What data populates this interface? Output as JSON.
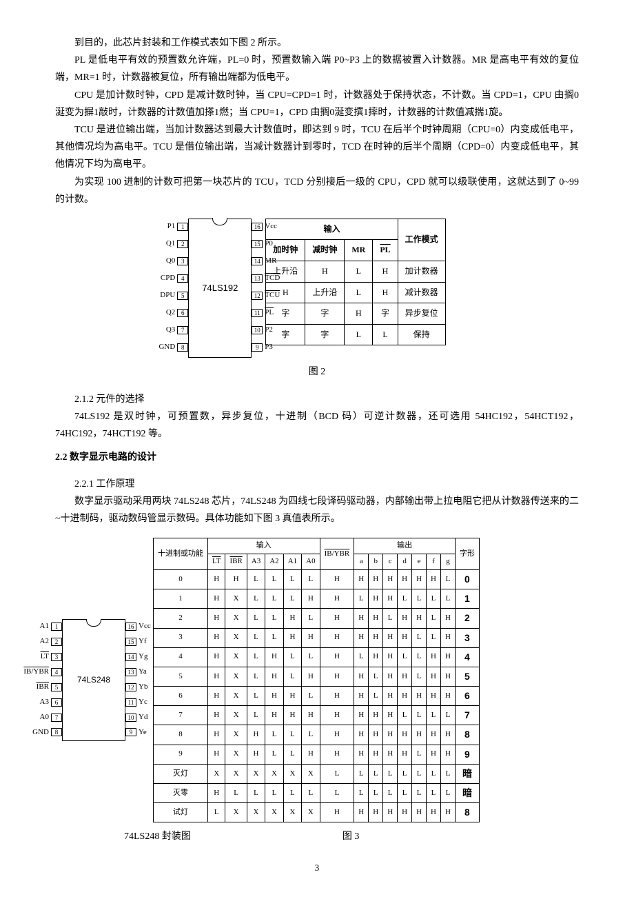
{
  "paras": [
    "到目的，此芯片封装和工作模式表如下图 2 所示。",
    "PL 是低电平有效的预置数允许端，PL=0 时，预置数输入端 P0~P3 上的数据被置入计数器。MR 是高电平有效的复位端，MR=1 时，计数器被复位，所有输出端都为低电平。",
    "CPU 是加计数时钟，CPD 是减计数时钟，当 CPU=CPD=1 时，计数器处于保持状态，不计数。当 CPD=1，CPU 由搁0涎变为摒1敲时，计数器的计数值加搽1燃；当 CPU=1，CPD 由搁0涎变撰1摔时，计数器的计数值减揣1旋。",
    "TCU 是进位输出端，当加计数器达到最大计数值时，即达到 9 时，TCU 在后半个时钟周期（CPU=0）内变成低电平，其他情况均为高电平。TCU 是借位输出端，当减计数器计到零时，TCD 在时钟的后半个周期（CPD=0）内变成低电平，其他情况下均为高电平。",
    "为实现 100 进制的计数可把第一块芯片的 TCU，TCD 分别接后一级的 CPU，CPD 就可以级联使用，这就达到了 0~99 的计数。"
  ],
  "chip1": {
    "name": "74LS192",
    "left": [
      {
        "lbl": "P1",
        "num": "1"
      },
      {
        "lbl": "Q1",
        "num": "2"
      },
      {
        "lbl": "Q0",
        "num": "3"
      },
      {
        "lbl": "CPD",
        "num": "4"
      },
      {
        "lbl": "DPU",
        "num": "5"
      },
      {
        "lbl": "Q2",
        "num": "6"
      },
      {
        "lbl": "Q3",
        "num": "7"
      },
      {
        "lbl": "GND",
        "num": "8"
      }
    ],
    "right": [
      {
        "num": "16",
        "lbl": "Vcc"
      },
      {
        "num": "15",
        "lbl": "P0"
      },
      {
        "num": "14",
        "lbl": "MR"
      },
      {
        "num": "13",
        "lbl": "TCD",
        "ovl": true
      },
      {
        "num": "12",
        "lbl": "TCU",
        "ovl": true
      },
      {
        "num": "11",
        "lbl": "PL",
        "ovl": true
      },
      {
        "num": "10",
        "lbl": "P2"
      },
      {
        "num": "9",
        "lbl": "P3"
      }
    ]
  },
  "modetable": {
    "hdr_input": "输入",
    "hdr_mode": "工作模式",
    "cols": [
      "加时钟",
      "减时钟",
      "MR",
      "PL"
    ],
    "pl_ovl": true,
    "rows": [
      [
        "上升沿",
        "H",
        "L",
        "H",
        "加计数器"
      ],
      [
        "H",
        "上升沿",
        "L",
        "H",
        "减计数器"
      ],
      [
        "字",
        "字",
        "H",
        "字",
        "异步复位"
      ],
      [
        "字",
        "字",
        "L",
        "L",
        "保持"
      ]
    ]
  },
  "fig2_caption": "图 2",
  "sec212": "2.1.2 元件的选择",
  "para212": "74LS192 是双时钟，可预置数，异步复位，十进制（BCD 码）可逆计数器，还可选用 54HC192，54HCT192，74HC192，74HCT192 等。",
  "sec22": "2.2 数字显示电路的设计",
  "sec221": "2.2.1 工作原理",
  "para221": "数字显示驱动采用两块 74LS248 芯片，74LS248 为四线七段译码驱动器，内部输出带上拉电阻它把从计数器传送来的二~十进制码，驱动数码管显示数码。具体功能如下图 3 真值表所示。",
  "chip2": {
    "name": "74LS248",
    "left": [
      {
        "lbl": "A1",
        "num": "1"
      },
      {
        "lbl": "A2",
        "num": "2"
      },
      {
        "lbl": "LT",
        "num": "3",
        "ovl": true
      },
      {
        "lbl": "IB/YBR",
        "num": "4",
        "ovl": true
      },
      {
        "lbl": "IBR",
        "num": "5",
        "ovl": true
      },
      {
        "lbl": "A3",
        "num": "6"
      },
      {
        "lbl": "A0",
        "num": "7"
      },
      {
        "lbl": "GND",
        "num": "8"
      }
    ],
    "right": [
      {
        "num": "16",
        "lbl": "Vcc"
      },
      {
        "num": "15",
        "lbl": "Yf"
      },
      {
        "num": "14",
        "lbl": "Yg"
      },
      {
        "num": "13",
        "lbl": "Ya"
      },
      {
        "num": "12",
        "lbl": "Yb"
      },
      {
        "num": "11",
        "lbl": "Yc"
      },
      {
        "num": "10",
        "lbl": "Yd"
      },
      {
        "num": "9",
        "lbl": "Ye"
      }
    ]
  },
  "truth": {
    "hdr_dec": "十进制或功能",
    "hdr_in": "输入",
    "hdr_mid": "IB/YBR",
    "hdr_out": "输出",
    "hdr_shape": "字形",
    "incols": [
      "LT",
      "IBR",
      "A3",
      "A2",
      "A1",
      "A0"
    ],
    "incols_ovl": [
      true,
      true,
      false,
      false,
      false,
      false
    ],
    "outcols": [
      "a",
      "b",
      "c",
      "d",
      "e",
      "f",
      "g"
    ],
    "rows": [
      {
        "f": "0",
        "in": [
          "H",
          "H",
          "L",
          "L",
          "L",
          "L"
        ],
        "m": "H",
        "out": [
          "H",
          "H",
          "H",
          "H",
          "H",
          "H",
          "L"
        ],
        "d": "0"
      },
      {
        "f": "1",
        "in": [
          "H",
          "X",
          "L",
          "L",
          "L",
          "H"
        ],
        "m": "H",
        "out": [
          "L",
          "H",
          "H",
          "L",
          "L",
          "L",
          "L"
        ],
        "d": "1"
      },
      {
        "f": "2",
        "in": [
          "H",
          "X",
          "L",
          "L",
          "H",
          "L"
        ],
        "m": "H",
        "out": [
          "H",
          "H",
          "L",
          "H",
          "H",
          "L",
          "H"
        ],
        "d": "2"
      },
      {
        "f": "3",
        "in": [
          "H",
          "X",
          "L",
          "L",
          "H",
          "H"
        ],
        "m": "H",
        "out": [
          "H",
          "H",
          "H",
          "H",
          "L",
          "L",
          "H"
        ],
        "d": "3"
      },
      {
        "f": "4",
        "in": [
          "H",
          "X",
          "L",
          "H",
          "L",
          "L"
        ],
        "m": "H",
        "out": [
          "L",
          "H",
          "H",
          "L",
          "L",
          "H",
          "H"
        ],
        "d": "4"
      },
      {
        "f": "5",
        "in": [
          "H",
          "X",
          "L",
          "H",
          "L",
          "H"
        ],
        "m": "H",
        "out": [
          "H",
          "L",
          "H",
          "H",
          "L",
          "H",
          "H"
        ],
        "d": "5"
      },
      {
        "f": "6",
        "in": [
          "H",
          "X",
          "L",
          "H",
          "H",
          "L"
        ],
        "m": "H",
        "out": [
          "H",
          "L",
          "H",
          "H",
          "H",
          "H",
          "H"
        ],
        "d": "6"
      },
      {
        "f": "7",
        "in": [
          "H",
          "X",
          "L",
          "H",
          "H",
          "H"
        ],
        "m": "H",
        "out": [
          "H",
          "H",
          "H",
          "L",
          "L",
          "L",
          "L"
        ],
        "d": "7"
      },
      {
        "f": "8",
        "in": [
          "H",
          "X",
          "H",
          "L",
          "L",
          "L"
        ],
        "m": "H",
        "out": [
          "H",
          "H",
          "H",
          "H",
          "H",
          "H",
          "H"
        ],
        "d": "8"
      },
      {
        "f": "9",
        "in": [
          "H",
          "X",
          "H",
          "L",
          "L",
          "H"
        ],
        "m": "H",
        "out": [
          "H",
          "H",
          "H",
          "H",
          "L",
          "H",
          "H"
        ],
        "d": "9"
      },
      {
        "f": "灭灯",
        "in": [
          "X",
          "X",
          "X",
          "X",
          "X",
          "X"
        ],
        "m": "L",
        "out": [
          "L",
          "L",
          "L",
          "L",
          "L",
          "L",
          "L"
        ],
        "d": "暗"
      },
      {
        "f": "灭零",
        "in": [
          "H",
          "L",
          "L",
          "L",
          "L",
          "L"
        ],
        "m": "L",
        "out": [
          "L",
          "L",
          "L",
          "L",
          "L",
          "L",
          "L"
        ],
        "d": "暗"
      },
      {
        "f": "试灯",
        "in": [
          "L",
          "X",
          "X",
          "X",
          "X",
          "X"
        ],
        "m": "H",
        "out": [
          "H",
          "H",
          "H",
          "H",
          "H",
          "H",
          "H"
        ],
        "d": "8"
      }
    ]
  },
  "cap_chip2": "74LS248 封装图",
  "cap_fig3": "图 3",
  "pagenum": "3"
}
